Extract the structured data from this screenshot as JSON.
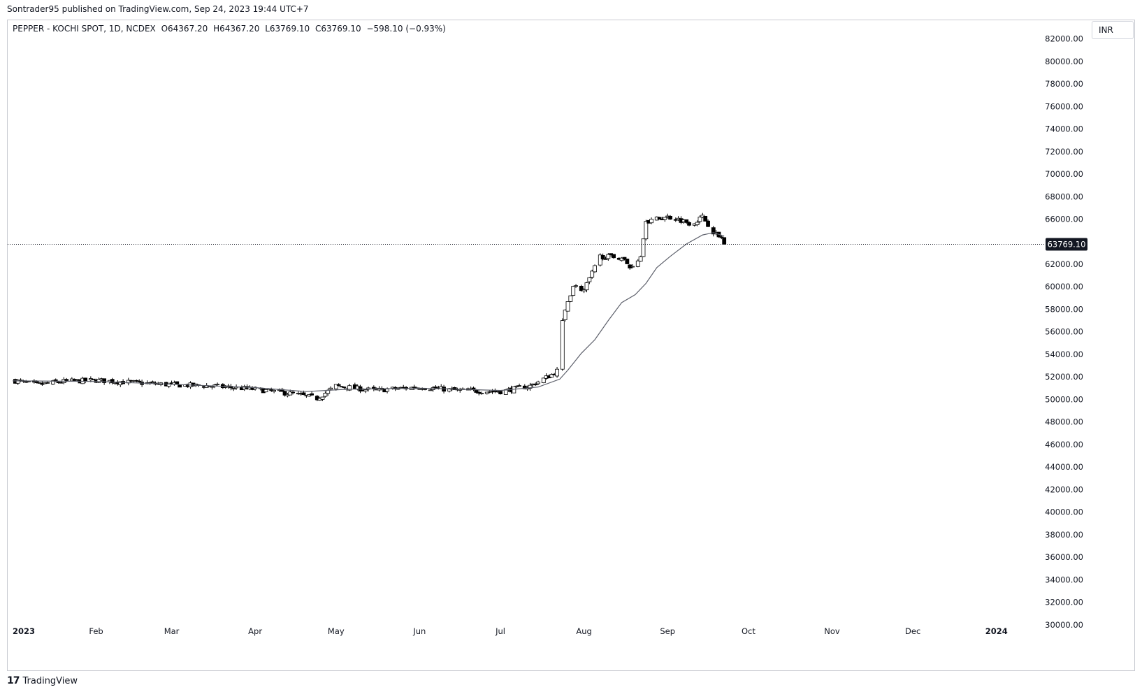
{
  "header": {
    "published_by": "Sontrader95 published on TradingView.com, Sep 24, 2023 19:44 UTC+7"
  },
  "legend": {
    "symbol": "PEPPER - KOCHI SPOT, 1D, NCDEX",
    "open": "O64367.20",
    "high": "H64367.20",
    "low": "L63769.10",
    "close": "C63769.10",
    "change": "−598.10 (−0.93%)"
  },
  "currency_label": "INR",
  "footer": {
    "brand": "TradingView",
    "logo_mark": "17"
  },
  "colors": {
    "up_body": "#ffffff",
    "down_body": "#000000",
    "candle_outline": "#000000",
    "ma_line": "#5d606b",
    "price_tag_bg": "#131722",
    "price_tag_text": "#ffffff"
  },
  "chart_data": {
    "type": "candlestick",
    "interval": "1D",
    "last_price": 63769.1,
    "last_price_label": "63769.10",
    "y_axis": {
      "range": [
        29000,
        83400
      ],
      "ticks": [
        30000,
        32000,
        34000,
        36000,
        38000,
        40000,
        42000,
        44000,
        46000,
        48000,
        50000,
        52000,
        54000,
        56000,
        58000,
        60000,
        62000,
        64000,
        66000,
        68000,
        70000,
        72000,
        74000,
        76000,
        78000,
        80000,
        82000
      ],
      "tick_labels": [
        "30000.00",
        "32000.00",
        "34000.00",
        "36000.00",
        "38000.00",
        "40000.00",
        "42000.00",
        "44000.00",
        "46000.00",
        "48000.00",
        "50000.00",
        "52000.00",
        "54000.00",
        "56000.00",
        "58000.00",
        "60000.00",
        "62000.00",
        "64000.00",
        "66000.00",
        "68000.00",
        "70000.00",
        "72000.00",
        "74000.00",
        "76000.00",
        "78000.00",
        "80000.00",
        "82000.00"
      ]
    },
    "x_axis": {
      "range": [
        "2023-01-01",
        "2024-01-27"
      ],
      "labels": [
        {
          "date": "2023-01-01",
          "text": "2023"
        },
        {
          "date": "2023-02-01",
          "text": "Feb"
        },
        {
          "date": "2023-03-01",
          "text": "Mar"
        },
        {
          "date": "2023-04-01",
          "text": "Apr"
        },
        {
          "date": "2023-05-01",
          "text": "May"
        },
        {
          "date": "2023-06-01",
          "text": "Jun"
        },
        {
          "date": "2023-07-01",
          "text": "Jul"
        },
        {
          "date": "2023-08-01",
          "text": "Aug"
        },
        {
          "date": "2023-09-01",
          "text": "Sep"
        },
        {
          "date": "2023-10-01",
          "text": "Oct"
        },
        {
          "date": "2023-11-01",
          "text": "Nov"
        },
        {
          "date": "2023-12-01",
          "text": "Dec"
        },
        {
          "date": "2024-01-01",
          "text": "2024"
        }
      ]
    },
    "grid": false,
    "series": [
      {
        "kind": "ohlc",
        "close_keypoints": [
          [
            "2023-01-01",
            51700
          ],
          [
            "2023-01-10",
            51300
          ],
          [
            "2023-01-20",
            51600
          ],
          [
            "2023-02-01",
            51700
          ],
          [
            "2023-02-15",
            51500
          ],
          [
            "2023-03-01",
            51300
          ],
          [
            "2023-03-15",
            51200
          ],
          [
            "2023-04-01",
            50900
          ],
          [
            "2023-04-15",
            50500
          ],
          [
            "2023-04-24",
            50100
          ],
          [
            "2023-05-01",
            51200
          ],
          [
            "2023-05-15",
            50800
          ],
          [
            "2023-06-01",
            51100
          ],
          [
            "2023-06-15",
            50800
          ],
          [
            "2023-07-01",
            50700
          ],
          [
            "2023-07-12",
            51200
          ],
          [
            "2023-07-20",
            52200
          ],
          [
            "2023-07-23",
            52700
          ],
          [
            "2023-07-24",
            57000
          ],
          [
            "2023-07-26",
            58700
          ],
          [
            "2023-07-28",
            60100
          ],
          [
            "2023-08-01",
            59700
          ],
          [
            "2023-08-04",
            61200
          ],
          [
            "2023-08-07",
            62700
          ],
          [
            "2023-08-15",
            62600
          ],
          [
            "2023-08-18",
            61700
          ],
          [
            "2023-08-22",
            62700
          ],
          [
            "2023-08-24",
            65800
          ],
          [
            "2023-08-28",
            66000
          ],
          [
            "2023-09-01",
            66200
          ],
          [
            "2023-09-05",
            66000
          ],
          [
            "2023-09-10",
            65600
          ],
          [
            "2023-09-14",
            66200
          ],
          [
            "2023-09-18",
            64900
          ],
          [
            "2023-09-20",
            64400
          ],
          [
            "2023-09-21",
            64367.2
          ],
          [
            "2023-09-22",
            63769.1
          ]
        ]
      },
      {
        "kind": "moving_average",
        "points": [
          [
            "2023-01-01",
            51650
          ],
          [
            "2023-02-01",
            51600
          ],
          [
            "2023-03-01",
            51350
          ],
          [
            "2023-04-01",
            51050
          ],
          [
            "2023-04-20",
            50700
          ],
          [
            "2023-05-05",
            50900
          ],
          [
            "2023-06-01",
            51000
          ],
          [
            "2023-07-01",
            50800
          ],
          [
            "2023-07-15",
            51100
          ],
          [
            "2023-07-23",
            51800
          ],
          [
            "2023-07-26",
            52600
          ],
          [
            "2023-07-31",
            54100
          ],
          [
            "2023-08-05",
            55300
          ],
          [
            "2023-08-10",
            57000
          ],
          [
            "2023-08-15",
            58600
          ],
          [
            "2023-08-20",
            59300
          ],
          [
            "2023-08-24",
            60300
          ],
          [
            "2023-08-28",
            61700
          ],
          [
            "2023-09-02",
            62700
          ],
          [
            "2023-09-08",
            63800
          ],
          [
            "2023-09-14",
            64600
          ],
          [
            "2023-09-18",
            64800
          ],
          [
            "2023-09-22",
            64500
          ]
        ]
      }
    ]
  }
}
